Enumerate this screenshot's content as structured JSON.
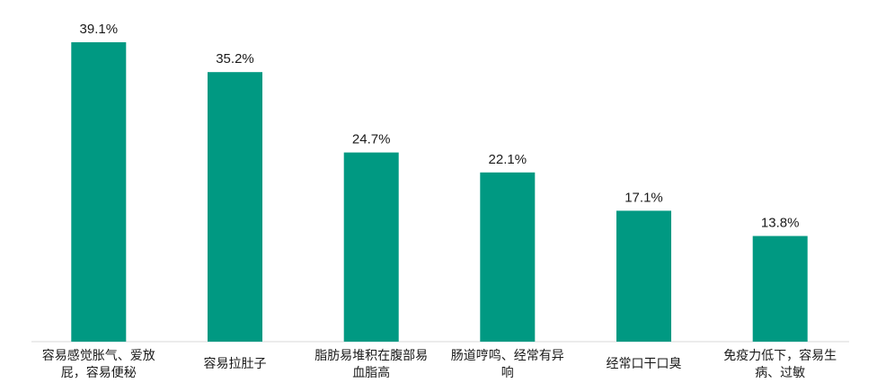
{
  "chart_data": {
    "type": "bar",
    "categories": [
      [
        "容易感觉胀气、爱放",
        "屁，容易便秘"
      ],
      [
        "容易拉肚子"
      ],
      [
        "脂肪易堆积在腹部易",
        "血脂高"
      ],
      [
        "肠道哼鸣、经常有异",
        "响"
      ],
      [
        "经常口干口臭"
      ],
      [
        "免疫力低下，容易生",
        "病、过敏"
      ]
    ],
    "values": [
      39.1,
      35.2,
      24.7,
      22.1,
      17.1,
      13.8
    ],
    "data_labels": [
      "39.1%",
      "35.2%",
      "24.7%",
      "22.1%",
      "17.1%",
      "13.8%"
    ],
    "bar_color": "#009982",
    "axis_color": "#d9d9d9",
    "ylim": [
      0,
      39.1
    ],
    "grid": false,
    "legend": "none"
  }
}
